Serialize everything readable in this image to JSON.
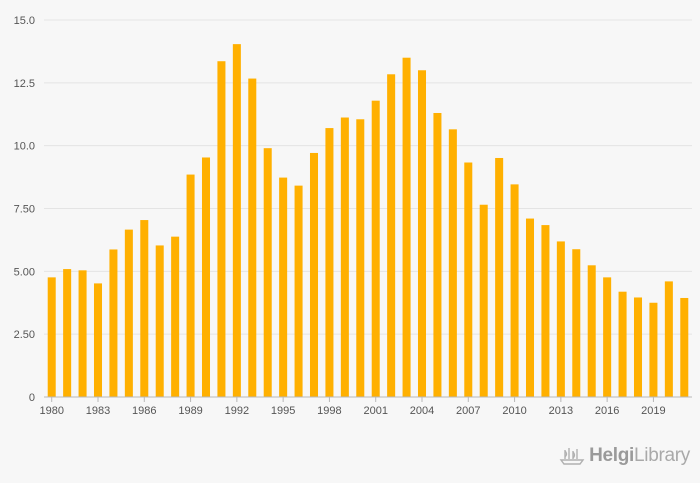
{
  "chart_data": {
    "type": "bar",
    "bar_color": "#FFB000",
    "x": [
      1980,
      1981,
      1982,
      1983,
      1984,
      1985,
      1986,
      1987,
      1988,
      1989,
      1990,
      1991,
      1992,
      1993,
      1994,
      1995,
      1996,
      1997,
      1998,
      1999,
      2000,
      2001,
      2002,
      2003,
      2004,
      2005,
      2006,
      2007,
      2008,
      2009,
      2010,
      2011,
      2012,
      2013,
      2014,
      2015,
      2016,
      2017,
      2018,
      2019,
      2020,
      2021
    ],
    "values": [
      4.76,
      5.09,
      5.04,
      4.52,
      5.87,
      6.66,
      7.04,
      6.03,
      6.38,
      8.85,
      9.53,
      13.36,
      14.04,
      12.67,
      9.9,
      8.73,
      8.41,
      9.71,
      10.7,
      11.12,
      11.05,
      11.79,
      12.84,
      13.5,
      13.0,
      11.3,
      10.65,
      9.33,
      7.65,
      9.51,
      8.46,
      7.1,
      6.84,
      6.19,
      5.88,
      5.24,
      4.76,
      4.19,
      3.96,
      3.75,
      4.6,
      3.94
    ],
    "x_tick_labels": [
      "1980",
      "1983",
      "1986",
      "1989",
      "1992",
      "1995",
      "1998",
      "2001",
      "2004",
      "2007",
      "2010",
      "2013",
      "2016",
      "2019"
    ],
    "y_tick_labels": [
      "0",
      "2.50",
      "5.00",
      "7.50",
      "10.0",
      "12.5",
      "15.0"
    ],
    "y_ticks": [
      0,
      2.5,
      5,
      7.5,
      10,
      12.5,
      15
    ],
    "ylim": [
      0,
      15
    ],
    "grid": true,
    "legend": "none"
  },
  "logo": {
    "word1": "Helgi",
    "word2": "Library"
  }
}
